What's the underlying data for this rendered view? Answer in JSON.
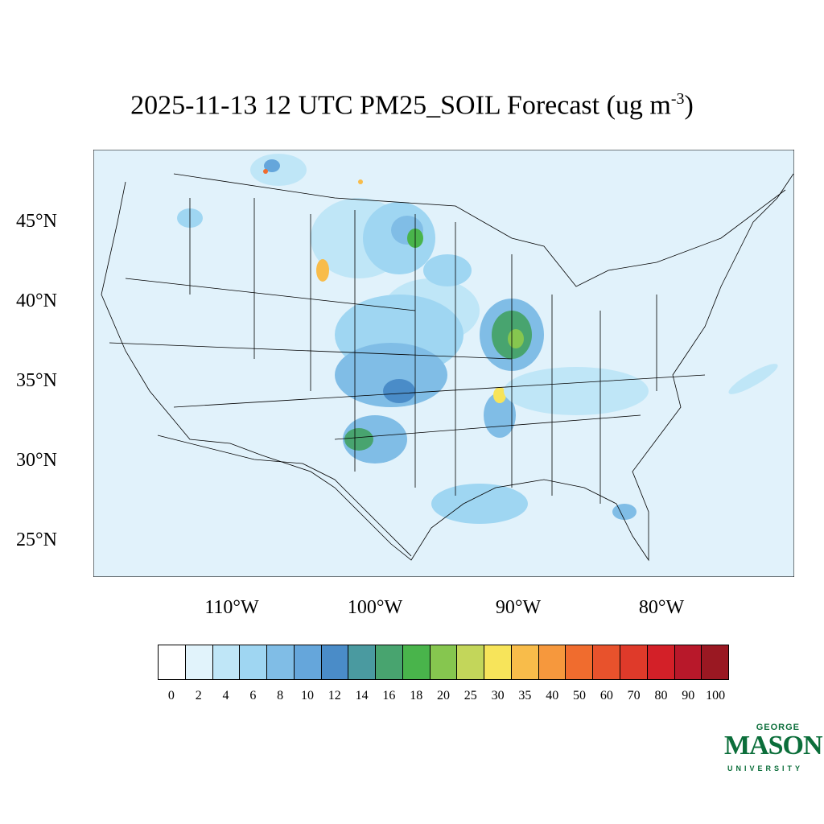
{
  "title": {
    "main": "2025-11-13 12 UTC PM25_SOIL Forecast (ug m",
    "sup": "-3",
    "close": ")"
  },
  "lat_labels": [
    "45°N",
    "40°N",
    "35°N",
    "30°N",
    "25°N"
  ],
  "lon_labels": [
    "110°W",
    "100°W",
    "90°W",
    "80°W"
  ],
  "colorbar": {
    "labels": [
      "0",
      "2",
      "4",
      "6",
      "8",
      "10",
      "12",
      "14",
      "16",
      "18",
      "20",
      "25",
      "30",
      "35",
      "40",
      "50",
      "60",
      "70",
      "80",
      "90",
      "100"
    ],
    "colors": [
      "#ffffff",
      "#e1f3fb",
      "#bfe6f7",
      "#9fd6f2",
      "#80bde6",
      "#65a6db",
      "#4a8cc8",
      "#4a9aa0",
      "#48a46f",
      "#49b44b",
      "#86c64f",
      "#c3d65a",
      "#f7e45a",
      "#f8bc4a",
      "#f6983d",
      "#f06c2e",
      "#e8522c",
      "#df3a2a",
      "#d32028",
      "#b8182a",
      "#9a1822"
    ]
  },
  "map": {
    "background_color": "#e1f2fb"
  },
  "logo": {
    "line1": "GEORGE",
    "line2": "MASON",
    "line3": "UNIVERSITY",
    "color": "#0b6e3a"
  }
}
